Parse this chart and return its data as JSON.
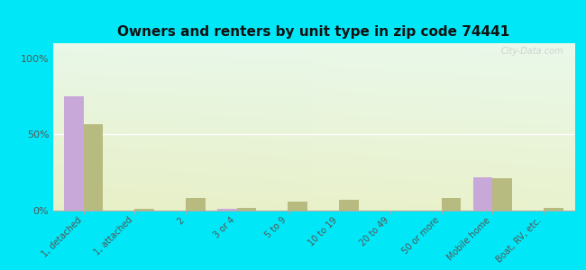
{
  "title": "Owners and renters by unit type in zip code 74441",
  "categories": [
    "1, detached",
    "1, attached",
    "2",
    "3 or 4",
    "5 to 9",
    "10 to 19",
    "20 to 49",
    "50 or more",
    "Mobile home",
    "Boat, RV, etc."
  ],
  "owner_values": [
    75,
    0,
    0,
    1,
    0,
    0,
    0,
    0,
    22,
    0
  ],
  "renter_values": [
    57,
    1,
    8,
    2,
    6,
    7,
    0,
    8,
    21,
    2
  ],
  "owner_color": "#c8a8d8",
  "renter_color": "#b8bb80",
  "outer_bg": "#00e8f8",
  "yticks": [
    0,
    50,
    100
  ],
  "ylabels": [
    "0%",
    "50%",
    "100%"
  ],
  "ylim": [
    0,
    110
  ],
  "watermark": "City-Data.com",
  "bg_colors": [
    "#e8f5e0",
    "#f5fce8",
    "#eaf8f0",
    "#f0faf0"
  ],
  "title_fontsize": 11
}
